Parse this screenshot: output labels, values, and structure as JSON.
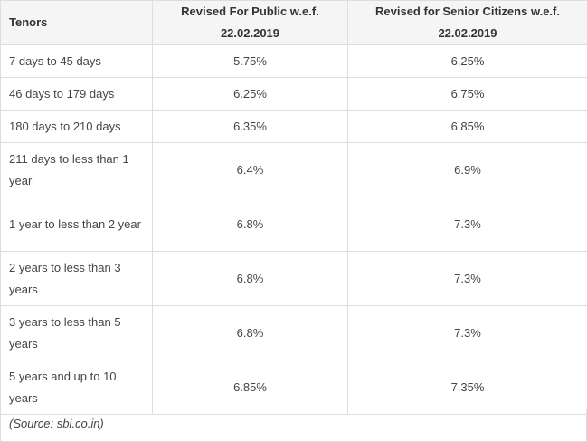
{
  "table": {
    "headers": {
      "tenor": "Tenors",
      "public": "Revised For Public w.e.f. 22.02.2019",
      "senior": "Revised for Senior Citizens w.e.f. 22.02.2019"
    },
    "rows": [
      {
        "tenor": "7 days to 45 days",
        "public": "5.75%",
        "senior": "6.25%"
      },
      {
        "tenor": "46 days to 179 days",
        "public": "6.25%",
        "senior": "6.75%"
      },
      {
        "tenor": "180 days to 210 days",
        "public": "6.35%",
        "senior": "6.85%"
      },
      {
        "tenor": "211 days to less than 1 year",
        "public": "6.4%",
        "senior": "6.9%"
      },
      {
        "tenor": "1 year to less than 2 year",
        "public": "6.8%",
        "senior": "7.3%"
      },
      {
        "tenor": "2 years to less than 3 years",
        "public": "6.8%",
        "senior": "7.3%"
      },
      {
        "tenor": "3 years to less than 5 years",
        "public": "6.8%",
        "senior": "7.3%"
      },
      {
        "tenor": "5 years and up to 10 years",
        "public": "6.85%",
        "senior": "7.35%"
      }
    ]
  },
  "source": "(Source: sbi.co.in)"
}
